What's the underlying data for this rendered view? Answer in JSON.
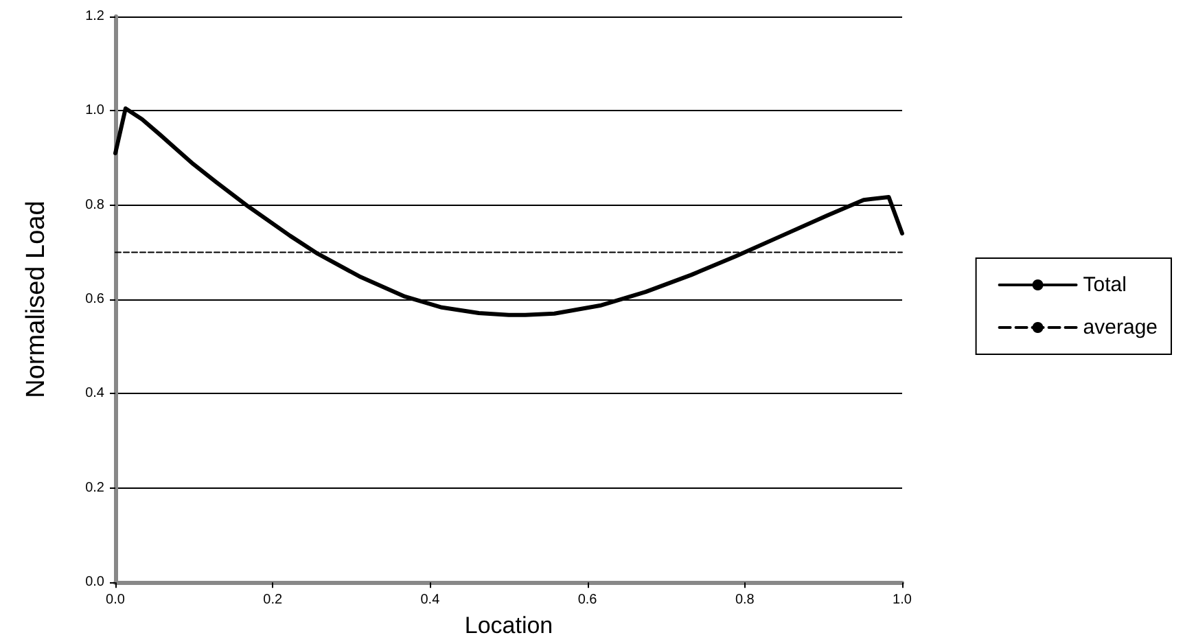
{
  "chart_data": {
    "type": "line",
    "xlabel": "Location",
    "ylabel": "Normalised Load",
    "xlim": [
      0,
      1
    ],
    "xticks": [
      {
        "value": 0,
        "label": "0.0"
      },
      {
        "value": 0.2,
        "label": "0.2"
      },
      {
        "value": 0.4,
        "label": "0.4"
      },
      {
        "value": 0.6,
        "label": "0.6"
      },
      {
        "value": 0.8,
        "label": "0.8"
      },
      {
        "value": 1,
        "label": "1.0"
      }
    ],
    "ylim": [
      0,
      1.2
    ],
    "yticks": [
      {
        "value": 0,
        "label": "0.0"
      },
      {
        "value": 0.2,
        "label": "0.2"
      },
      {
        "value": 0.4,
        "label": "0.4"
      },
      {
        "value": 0.6,
        "label": "0.6"
      },
      {
        "value": 0.8,
        "label": "0.8"
      },
      {
        "value": 1,
        "label": "1.0"
      },
      {
        "value": 1.2,
        "label": "1.2"
      }
    ],
    "grid": "y",
    "legend": "right",
    "marker": "none",
    "series": [
      {
        "name": "Total",
        "color": "#000000",
        "line_style": "solid",
        "x": [
          0,
          0.013,
          0.034,
          0.057,
          0.099,
          0.128,
          0.169,
          0.222,
          0.257,
          0.31,
          0.368,
          0.415,
          0.462,
          0.5,
          0.521,
          0.558,
          0.616,
          0.674,
          0.732,
          0.789,
          0.847,
          0.905,
          0.951,
          0.983,
          1.0
        ],
        "values": [
          0.91,
          1.005,
          0.982,
          0.949,
          0.887,
          0.849,
          0.797,
          0.735,
          0.697,
          0.649,
          0.606,
          0.583,
          0.571,
          0.567,
          0.567,
          0.57,
          0.587,
          0.616,
          0.652,
          0.692,
          0.735,
          0.778,
          0.811,
          0.817,
          0.74
        ]
      },
      {
        "name": "average",
        "color": "#000000",
        "line_style": "dashed",
        "x": [
          0,
          1
        ],
        "values": [
          0.7,
          0.7
        ]
      }
    ]
  }
}
